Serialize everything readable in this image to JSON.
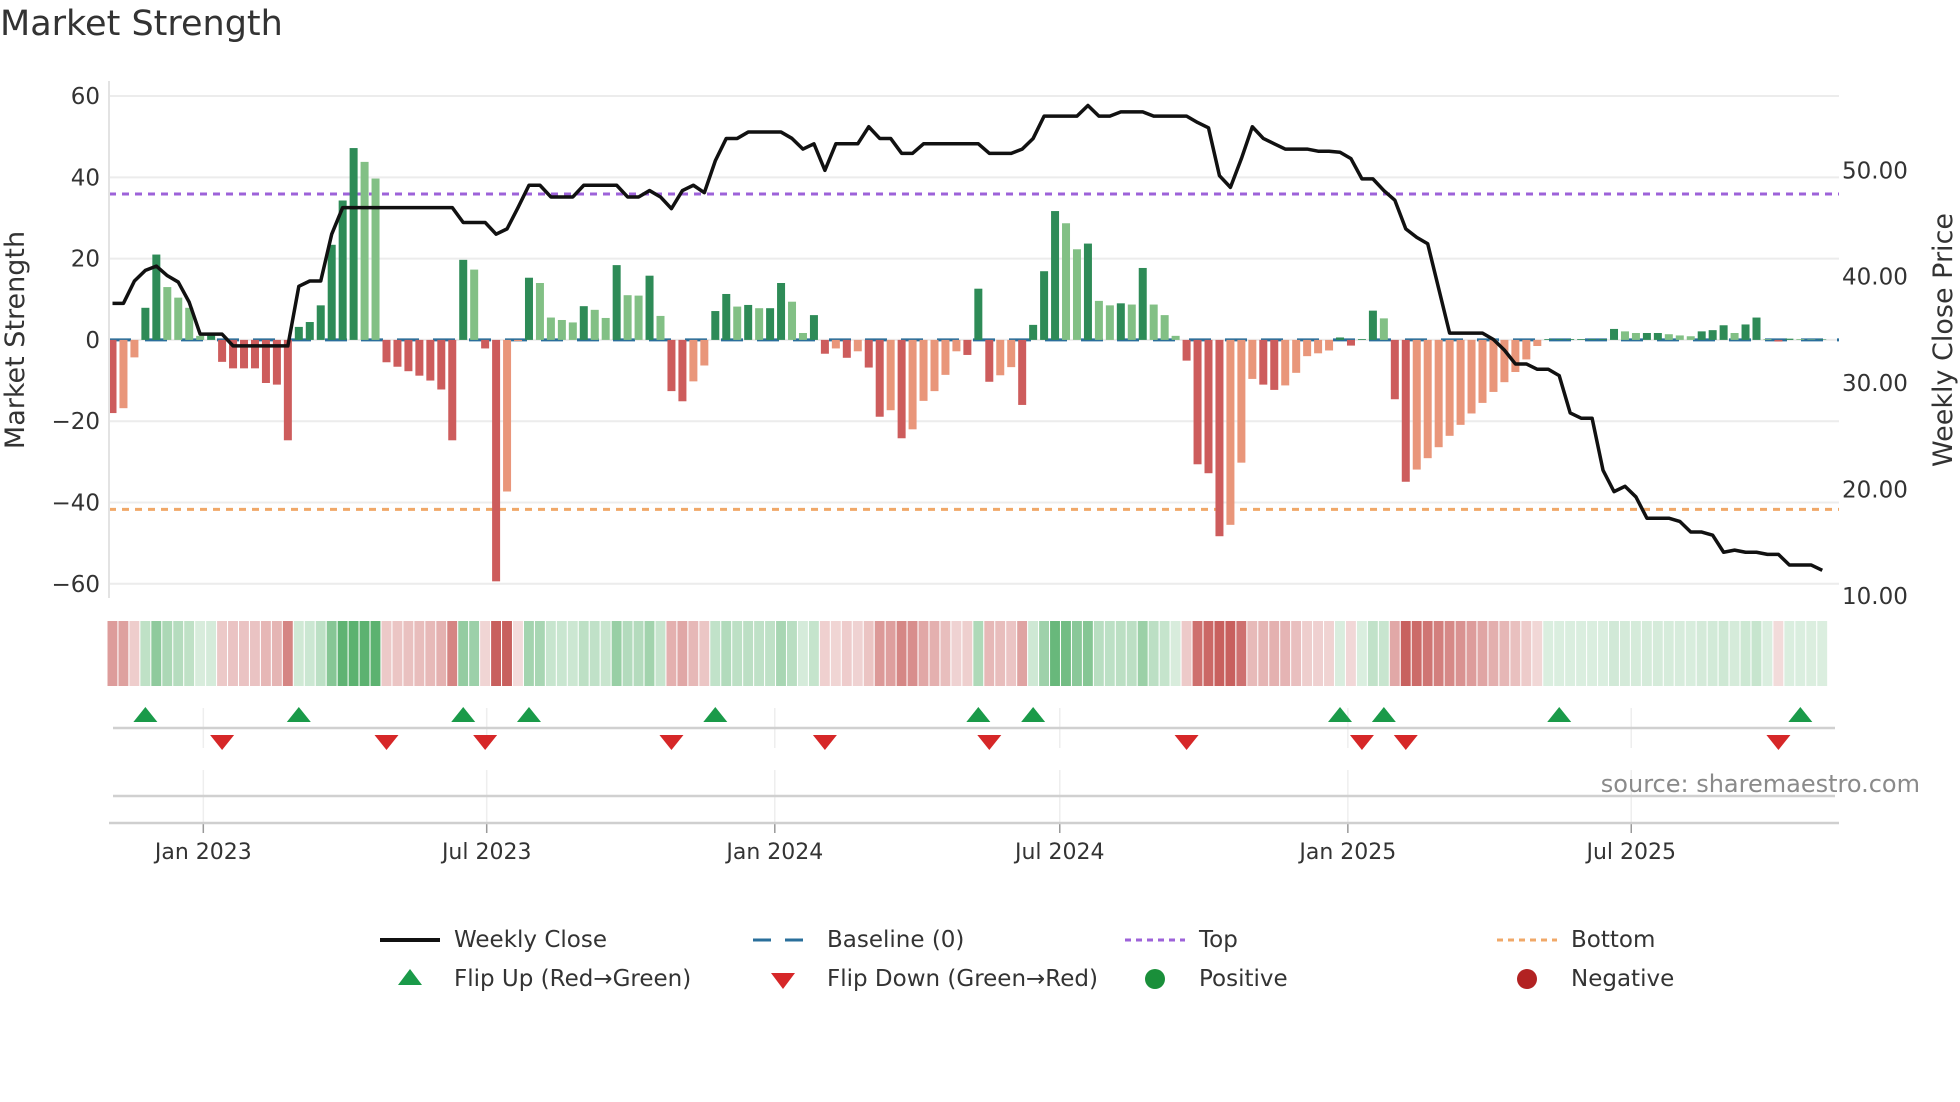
{
  "title": "Market Strength",
  "source": "source: sharemaestro.com",
  "colors": {
    "strong_green": "#2e8b57",
    "weak_green": "#82c085",
    "strong_red": "#cd5c5c",
    "weak_red": "#e9967a",
    "line": "#111111",
    "baseline": "#2a6f9b",
    "top": "#9d62d9",
    "bottom": "#f0a868",
    "flip_up": "#1a9a49",
    "flip_down": "#d62728",
    "positive": "#1a8f3a",
    "negative": "#b22222"
  },
  "chart_data": {
    "type": "bar",
    "title": "Market Strength",
    "x_start": "2022-11-04",
    "x_frequency": "weekly",
    "x_ticks": [
      {
        "date": "2023-01-01",
        "label": "Jan 2023"
      },
      {
        "date": "2023-07-01",
        "label": "Jul 2023"
      },
      {
        "date": "2024-01-01",
        "label": "Jan 2024"
      },
      {
        "date": "2024-07-01",
        "label": "Jul 2024"
      },
      {
        "date": "2025-01-01",
        "label": "Jan 2025"
      },
      {
        "date": "2025-07-01",
        "label": "Jul 2025"
      }
    ],
    "ylabel": "Market Strength",
    "ylim": [
      -63.5,
      63.7
    ],
    "y_ticks": [
      {
        "v": 60,
        "label": "60"
      },
      {
        "v": 40,
        "label": "40"
      },
      {
        "v": 20,
        "label": "20"
      },
      {
        "v": 0,
        "label": "0"
      },
      {
        "v": -20,
        "label": "−20"
      },
      {
        "v": -40,
        "label": "−40"
      },
      {
        "v": -60,
        "label": "−60"
      }
    ],
    "y2label": "Weekly Close Price",
    "y2lim": [
      9.7,
      58.3
    ],
    "y2_ticks": [
      {
        "v": 50,
        "label": "50.00"
      },
      {
        "v": 40,
        "label": "40.00"
      },
      {
        "v": 30,
        "label": "30.00"
      },
      {
        "v": 20,
        "label": "20.00"
      },
      {
        "v": 10,
        "label": "10.00"
      }
    ],
    "top_level": 35.9,
    "bottom_level": -41.7,
    "baseline": 0,
    "grid": true,
    "legend_position": "bottom",
    "series": [
      {
        "name": "Market Strength",
        "axis": "left",
        "values": [
          -18,
          -16.8,
          -4.3,
          7.9,
          21,
          13,
          10.4,
          7.9,
          1,
          1.7,
          -5.4,
          -7,
          -7,
          -7,
          -10.6,
          -11,
          -24.7,
          3.2,
          4.4,
          8.5,
          23.4,
          34.3,
          47.2,
          43.8,
          39.7,
          -5.5,
          -6.6,
          -7.7,
          -8.8,
          -10,
          -12.2,
          -24.7,
          19.7,
          17.3,
          -2.1,
          -59.4,
          -37.3,
          -0.3,
          15.3,
          14,
          5.5,
          4.9,
          4.3,
          8.3,
          7.4,
          5.4,
          18.4,
          11,
          10.9,
          15.8,
          5.9,
          -12.6,
          -15.1,
          -10.2,
          -6.3,
          7.1,
          11.3,
          8.2,
          8.6,
          7.8,
          7.8,
          14,
          9.4,
          1.7,
          6.1,
          -3.4,
          -2.1,
          -4.4,
          -2.8,
          -6.8,
          -18.9,
          -17.3,
          -24.2,
          -22,
          -15,
          -12.6,
          -8.6,
          -2.8,
          -3.7,
          12.6,
          -10.3,
          -8.7,
          -6.7,
          -16,
          3.7,
          16.9,
          31.7,
          28.7,
          22.3,
          23.7,
          9.6,
          8.5,
          9,
          8.7,
          17.7,
          8.7,
          6.1,
          1,
          -5.1,
          -30.6,
          -32.8,
          -48.3,
          -45.5,
          -30.2,
          -9.6,
          -11,
          -12.3,
          -11.2,
          -8.1,
          -4,
          -3.3,
          -2.6,
          0.6,
          -1.4,
          0.2,
          7.2,
          5.3,
          -14.6,
          -34.9,
          -31.9,
          -29.1,
          -26.4,
          -23.6,
          -20.9,
          -18.1,
          -15.5,
          -12.8,
          -10.4,
          -7.9,
          -4.8,
          -1.5,
          0.2,
          0.2,
          0.2,
          0.2,
          0.2,
          0.2,
          2.7,
          2.1,
          1.7,
          1.7,
          1.7,
          1.4,
          1.1,
          0.9,
          2.1,
          2.4,
          3.6,
          1.7,
          3.8,
          5.5,
          0.2,
          -0.4,
          0.3,
          0.2,
          0.1,
          0.1
        ]
      },
      {
        "name": "Weekly Close",
        "axis": "right",
        "values": [
          37.4,
          37.4,
          39.5,
          40.5,
          40.9,
          40.0,
          39.4,
          37.5,
          34.5,
          34.5,
          34.5,
          33.4,
          33.4,
          33.4,
          33.4,
          33.4,
          33.4,
          39.0,
          39.5,
          39.5,
          43.9,
          46.4,
          46.4,
          46.4,
          46.4,
          46.4,
          46.4,
          46.4,
          46.4,
          46.4,
          46.4,
          46.4,
          45.0,
          45.0,
          45.0,
          43.9,
          44.4,
          46.4,
          48.5,
          48.5,
          47.4,
          47.4,
          47.4,
          48.5,
          48.5,
          48.5,
          48.5,
          47.4,
          47.4,
          48.0,
          47.4,
          46.3,
          48.0,
          48.5,
          47.8,
          50.8,
          52.9,
          52.9,
          53.5,
          53.5,
          53.5,
          53.5,
          52.9,
          51.9,
          52.4,
          49.9,
          52.4,
          52.4,
          52.4,
          54.0,
          52.9,
          52.9,
          51.5,
          51.5,
          52.4,
          52.4,
          52.4,
          52.4,
          52.4,
          52.4,
          51.5,
          51.5,
          51.5,
          51.9,
          52.9,
          55.0,
          55.0,
          55.0,
          55.0,
          56.0,
          55.0,
          55.0,
          55.4,
          55.4,
          55.4,
          55.0,
          55.0,
          55.0,
          55.0,
          54.4,
          53.9,
          49.4,
          48.3,
          51.0,
          54.0,
          52.9,
          52.4,
          51.9,
          51.9,
          51.9,
          51.7,
          51.7,
          51.6,
          51.0,
          49.1,
          49.1,
          48.0,
          47.1,
          44.4,
          43.6,
          43.0,
          38.8,
          34.6,
          34.6,
          34.6,
          34.6,
          34.0,
          33.0,
          31.7,
          31.7,
          31.2,
          31.2,
          30.6,
          27.1,
          26.6,
          26.6,
          21.7,
          19.7,
          20.2,
          19.2,
          17.2,
          17.2,
          17.2,
          16.9,
          15.9,
          15.9,
          15.6,
          14.0,
          14.2,
          14.0,
          14.0,
          13.8,
          13.8,
          12.8,
          12.8,
          12.8,
          12.3
        ]
      }
    ],
    "flip_up": [
      "2022-11-25",
      "2023-03-03",
      "2023-06-16",
      "2023-07-28",
      "2023-11-24",
      "2024-05-10",
      "2024-06-14",
      "2024-12-27",
      "2025-01-24",
      "2025-05-16",
      "2025-10-17"
    ],
    "flip_down": [
      "2023-01-13",
      "2023-04-28",
      "2023-06-30",
      "2023-10-27",
      "2024-02-02",
      "2024-05-17",
      "2024-09-20",
      "2025-01-10",
      "2025-02-07",
      "2025-10-03"
    ],
    "legend": [
      {
        "key": "line",
        "label": "Weekly Close"
      },
      {
        "key": "baseline",
        "label": "Baseline (0)"
      },
      {
        "key": "top",
        "label": "Top"
      },
      {
        "key": "bottom",
        "label": "Bottom"
      },
      {
        "key": "flip_up",
        "label": "Flip Up (Red→Green)"
      },
      {
        "key": "flip_down",
        "label": "Flip Down (Green→Red)"
      },
      {
        "key": "positive",
        "label": "Positive"
      },
      {
        "key": "negative",
        "label": "Negative"
      }
    ]
  }
}
